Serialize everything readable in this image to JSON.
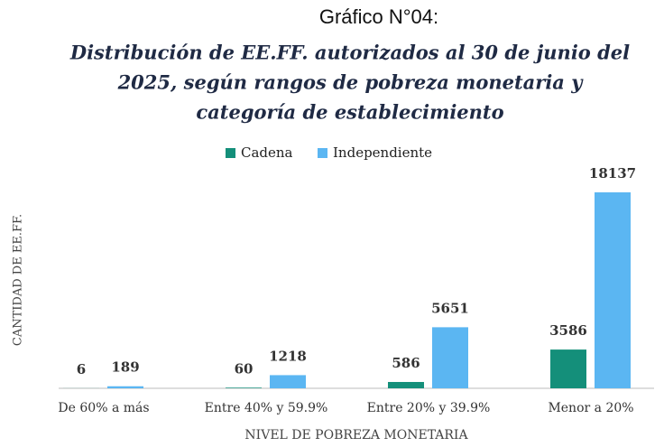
{
  "chart_data": {
    "type": "bar",
    "title": "Gráfico N°04:",
    "subtitle": [
      "Distribución de EE.FF. autorizados al 30 de junio del",
      "2025, según rangos de pobreza monetaria y",
      "categoría de establecimiento"
    ],
    "categories": [
      "De 60% a más",
      "Entre 40% y 59.9%",
      "Entre 20% y 39.9%",
      "Menor a 20%"
    ],
    "series": [
      {
        "name": "Cadena",
        "color": "#148f7a",
        "values": [
          6,
          60,
          586,
          3586
        ]
      },
      {
        "name": "Independiente",
        "color": "#5bb6f2",
        "values": [
          189,
          1218,
          5651,
          18137
        ]
      }
    ],
    "xlabel": "NIVEL DE POBREZA MONETARIA",
    "ylabel": "CANTIDAD DE EE.FF.",
    "legend": "top"
  }
}
